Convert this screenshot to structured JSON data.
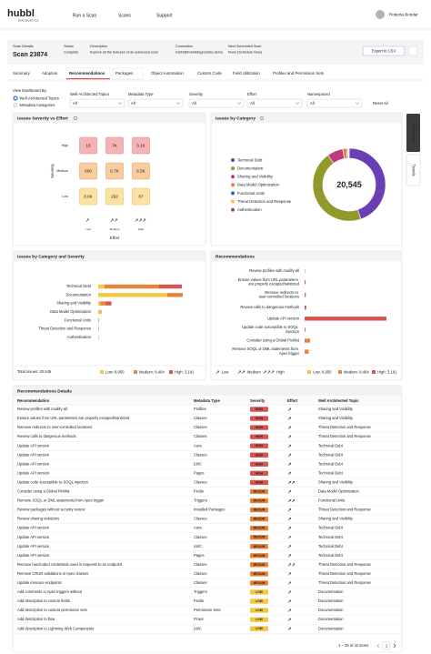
{
  "header": {
    "logo": "hubbl",
    "logo_sub": "DIAGNOSTICS",
    "nav": [
      "Run a Scan",
      "Scans",
      "Support"
    ],
    "user": "Roberta Bondar"
  },
  "scan": {
    "label": "Scan Details",
    "name": "Scan 23874",
    "fields": [
      {
        "label": "Status",
        "value": "Complete"
      },
      {
        "label": "Description",
        "value": "Explore all the features of an advanced scan"
      },
      {
        "label": "Connection",
        "value": "hubbl@hubbldiagnostics.demo"
      },
      {
        "label": "Next Scheduled Scan",
        "value": "None",
        "link": "(Schedule Now)"
      }
    ],
    "export": "Export to CSV"
  },
  "tabs": {
    "items": [
      "Summary",
      "Adoption",
      "Recommendations",
      "Packages",
      "Object Automation",
      "Custom Code",
      "Field Utilization",
      "Profiles and Permission Sets"
    ],
    "active": 2
  },
  "filters": {
    "view_label": "View Dashboard By:",
    "view_options": [
      "Well-Architected Topics",
      "Metadata Categories"
    ],
    "selected": 0,
    "selects": [
      {
        "label": "Well-Architected Topics",
        "value": "All"
      },
      {
        "label": "Metadata Type",
        "value": "All"
      },
      {
        "label": "Severity",
        "value": "All"
      },
      {
        "label": "Effort",
        "value": "All"
      },
      {
        "label": "Namespaced",
        "value": "All"
      }
    ],
    "reset": "Reset All"
  },
  "side_tabs": [
    "Overview",
    "Trends"
  ],
  "severity_effort": {
    "title": "Issues Severity vs Effort",
    "y_label": "Severity",
    "x_label": "Effort",
    "rows": [
      "High",
      "Medium",
      "Low"
    ],
    "columns": [
      "Low",
      "Medium",
      "High"
    ],
    "row_colors": [
      "#f4b3b5",
      "#f8cc9e",
      "#fbe2a2"
    ],
    "row_borders": [
      "#e58a8e",
      "#eaa66a",
      "#e9c564"
    ],
    "cells": [
      [
        "13",
        "7K",
        "3.1K"
      ],
      [
        "600",
        "6.7K",
        "6.5K"
      ],
      [
        "8.6K",
        "292",
        "87"
      ]
    ]
  },
  "issues_by_category": {
    "title": "Issues by Category",
    "total": "20,545",
    "colors": [
      "#6a3fb5",
      "#8f9a2a",
      "#c2397a",
      "#e8843a",
      "#3a5fb5",
      "#f2c744",
      "#a8388e"
    ]
  },
  "category_severity": {
    "title": "Issues by Category and Severity",
    "categories": [
      "Technical Debt",
      "Documentation",
      "Sharing and Visibility",
      "Data Model Optimization",
      "Functional Units",
      "Threat Detection and Response",
      "Authentication"
    ],
    "xlim": [
      0,
      10000
    ],
    "series": [
      {
        "name": "Low",
        "color": "#f2c744",
        "values": [
          700,
          7600,
          250,
          300,
          40,
          30,
          30
        ]
      },
      {
        "name": "Medium",
        "color": "#e8843a",
        "values": [
          6000,
          1700,
          560,
          60,
          40,
          24,
          20
        ]
      },
      {
        "name": "High",
        "color": "#d9534f",
        "values": [
          2500,
          0,
          640,
          0,
          21,
          20,
          10
        ]
      }
    ],
    "total_label": "Total Issues: 20,545",
    "legend_labels": [
      "Low: 8,950",
      "Medium: 8,404",
      "High: 3,191"
    ]
  },
  "recommendations_chart": {
    "title": "Recommendations",
    "categories": [
      "Review profiles with modify-all",
      "Ensure values from URL parameters are properly escaped/sanitized",
      "Remove redirects to user-controlled locations",
      "Review calls to dangerous methods",
      "Update API version",
      "Update code susceptible to SOQL injection",
      "Consider using a Global Picklist",
      "Remove SOQL or DML statements from Apex trigger",
      "Review sharing violations"
    ],
    "values": [
      13,
      35,
      40,
      60,
      3000,
      30,
      200,
      150,
      120
    ],
    "colors": [
      "#d9534f",
      "#d9534f",
      "#d9534f",
      "#d9534f",
      "#d9534f",
      "#d9534f",
      "#e8843a",
      "#e8843a",
      "#e8843a"
    ],
    "xlim": [
      0,
      3500
    ]
  },
  "details": {
    "title": "Recommendations Details",
    "columns": [
      "Recommendation",
      "Metadata Type",
      "Severity",
      "Effort",
      "Well Architected Topic"
    ],
    "badge_colors": {
      "HIGH": "#d9534f",
      "MEDIUM": "#e8843a",
      "LOW": "#f2c744"
    },
    "rows": [
      [
        "Review profiles with modify-all",
        "Profiles",
        "HIGH",
        "Low",
        "Sharing and Visibility"
      ],
      [
        "Ensure values from URL parameters are properly escaped/sanitized",
        "Classes",
        "HIGH",
        "Low",
        "Sharing and Visibility"
      ],
      [
        "Remove redirects to user-controlled locations",
        "Classes",
        "HIGH",
        "Low",
        "Threat Detection and Response"
      ],
      [
        "Review calls to dangerous methods",
        "Classes",
        "HIGH",
        "Low",
        "Threat Detection and Response"
      ],
      [
        "Update API version",
        "Aura",
        "HIGH",
        "Low",
        "Technical Debt"
      ],
      [
        "Update API version",
        "Classes",
        "HIGH",
        "Low",
        "Technical Debt"
      ],
      [
        "Update API version",
        "LWC",
        "HIGH",
        "Low",
        "Technical Debt"
      ],
      [
        "Update API version",
        "Pages",
        "HIGH",
        "Low",
        "Technical Debt"
      ],
      [
        "Update code susceptible to SOQL injection",
        "Classes",
        "HIGH",
        "Medium",
        "Sharing and Visibility"
      ],
      [
        "Consider using a Global Picklist",
        "Fields",
        "MEDIUM",
        "Low",
        "Data Model Optimization"
      ],
      [
        "Remove SOQL or DML statements from Apex trigger",
        "Triggers",
        "MEDIUM",
        "Medium",
        "Functional Units"
      ],
      [
        "Review packages without security review",
        "Installed Packages",
        "MEDIUM",
        "Low",
        "Threat Detection and Response"
      ],
      [
        "Review sharing violations",
        "Classes",
        "MEDIUM",
        "Low",
        "Sharing and Visibility"
      ],
      [
        "Update API version",
        "Aura",
        "MEDIUM",
        "Low",
        "Technical Debt"
      ],
      [
        "Update API version",
        "Classes",
        "MEDIUM",
        "Low",
        "Technical Debt"
      ],
      [
        "Update API version",
        "LWC",
        "MEDIUM",
        "Low",
        "Technical Debt"
      ],
      [
        "Update API version",
        "Pages",
        "MEDIUM",
        "Low",
        "Technical Debt"
      ],
      [
        "Remove hardcoded credentials used in requests to an endpoint",
        "Classes",
        "MEDIUM",
        "Medium",
        "Threat Detection and Response"
      ],
      [
        "Remove CRUD validations in Apex classes",
        "Classes",
        "MEDIUM",
        "Low",
        "Threat Detection and Response"
      ],
      [
        "Update insecure endpoints",
        "Classes",
        "MEDIUM",
        "Low",
        "Threat Detection and Response"
      ],
      [
        "Add comments to Apex triggers without",
        "Triggers",
        "LOW",
        "Low",
        "Documentation"
      ],
      [
        "Add description to custom fields",
        "Fields",
        "LOW",
        "Low",
        "Documentation"
      ],
      [
        "Add description to custom permission sets",
        "Permission Sets",
        "LOW",
        "Low",
        "Documentation"
      ],
      [
        "Add description to flow",
        "Flows",
        "LOW",
        "Low",
        "Documentation"
      ],
      [
        "Add description to Lightning Web Components",
        "LWC",
        "LOW",
        "Low",
        "Documentation"
      ]
    ],
    "pagination": "1 – 25 of 42 items",
    "page": "1"
  }
}
